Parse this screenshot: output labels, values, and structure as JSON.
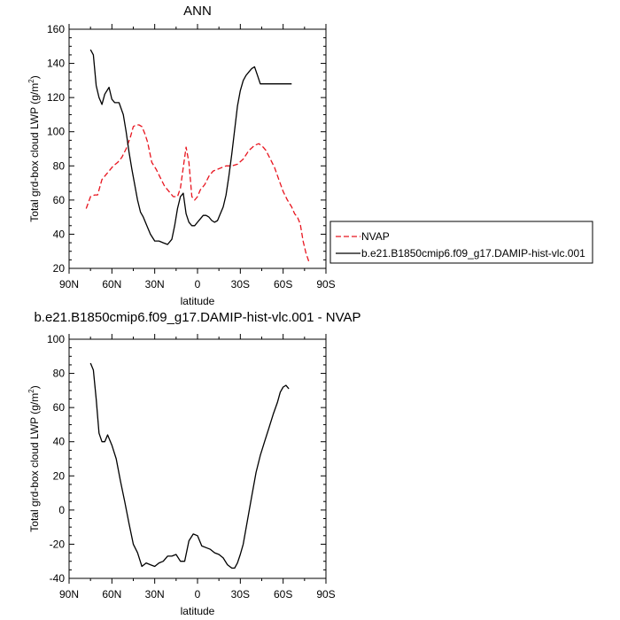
{
  "chart_data": [
    {
      "type": "line",
      "title": "ANN",
      "xlabel": "latitude",
      "ylabel_main": "Total grd-box cloud LWP (g/m",
      "ylabel_sup": "2",
      "ylabel_close": ")",
      "xlim": [
        90,
        -90
      ],
      "ylim": [
        20,
        160
      ],
      "xticks": [
        90,
        60,
        30,
        0,
        -30,
        -60,
        -90
      ],
      "xtick_labels": [
        "90N",
        "60N",
        "30N",
        "0",
        "30S",
        "60S",
        "90S"
      ],
      "yticks": [
        20,
        40,
        60,
        80,
        100,
        120,
        140,
        160
      ],
      "ytick_labels": [
        "20",
        "40",
        "60",
        "80",
        "100",
        "120",
        "140",
        "160"
      ],
      "legend_position": "right",
      "series": [
        {
          "name": "NVAP",
          "color": "#e8141e",
          "dash": true,
          "x": [
            78,
            75,
            72,
            70,
            67,
            64,
            62,
            59,
            56,
            53,
            50,
            47,
            45,
            43,
            41,
            39,
            37,
            35,
            32,
            29,
            26,
            23,
            20,
            17,
            14,
            12,
            10,
            8,
            6,
            4,
            2,
            0,
            -2,
            -5,
            -8,
            -11,
            -14,
            -17,
            -20,
            -24,
            -28,
            -32,
            -36,
            -40,
            -43,
            -46,
            -48,
            -51,
            -54,
            -57,
            -60,
            -63,
            -66,
            -68,
            -70,
            -72,
            -74,
            -76,
            -78
          ],
          "y": [
            55,
            62,
            63,
            63,
            72,
            75,
            77,
            80,
            82,
            85,
            90,
            97,
            103,
            104,
            104,
            103,
            99,
            94,
            82,
            78,
            73,
            68,
            65,
            62,
            62,
            67,
            79,
            91,
            82,
            62,
            60,
            62,
            66,
            69,
            74,
            77,
            78,
            79,
            80,
            80,
            81,
            84,
            89,
            92,
            93,
            91,
            89,
            84,
            79,
            72,
            65,
            60,
            56,
            52,
            50,
            46,
            36,
            29,
            24
          ]
        },
        {
          "name": "b.e21.B1850cmip6.f09_g17.DAMIP-hist-vlc.001",
          "color": "#000000",
          "dash": false,
          "x": [
            75,
            73,
            71,
            69,
            67,
            65,
            62,
            60,
            58,
            55,
            52,
            50,
            48,
            46,
            44,
            42,
            40,
            38,
            36,
            33,
            30,
            27,
            24,
            21,
            18,
            16,
            14,
            12,
            10,
            8,
            6,
            4,
            2,
            0,
            -2,
            -4,
            -6,
            -8,
            -10,
            -12,
            -14,
            -16,
            -18,
            -20,
            -22,
            -24,
            -26,
            -28,
            -30,
            -32,
            -34,
            -36,
            -38,
            -40,
            -42,
            -44,
            -46,
            -48,
            -50,
            -52,
            -54,
            -56,
            -58,
            -60,
            -62,
            -64,
            -66
          ],
          "y": [
            148,
            145,
            127,
            120,
            116,
            122,
            126,
            119,
            117,
            117,
            110,
            100,
            88,
            78,
            69,
            60,
            53,
            50,
            46,
            40,
            36,
            36,
            35,
            34,
            37,
            45,
            55,
            62,
            64,
            52,
            47,
            45,
            45,
            47,
            49,
            51,
            51,
            50,
            48,
            47,
            48,
            52,
            56,
            63,
            74,
            87,
            101,
            115,
            124,
            130,
            133,
            135,
            137,
            138,
            133,
            128,
            128,
            128,
            128,
            128,
            128,
            128,
            128,
            128,
            128,
            128,
            128
          ]
        }
      ]
    },
    {
      "type": "line",
      "title": "b.e21.B1850cmip6.f09_g17.DAMIP-hist-vlc.001 - NVAP",
      "xlabel": "latitude",
      "ylabel_main": "Total grd-box cloud LWP (g/m",
      "ylabel_sup": "2",
      "ylabel_close": ")",
      "xlim": [
        90,
        -90
      ],
      "ylim": [
        -40,
        100
      ],
      "xticks": [
        90,
        60,
        30,
        0,
        -30,
        -60,
        -90
      ],
      "xtick_labels": [
        "90N",
        "60N",
        "30N",
        "0",
        "30S",
        "60S",
        "90S"
      ],
      "yticks": [
        -40,
        -20,
        0,
        20,
        40,
        60,
        80,
        100
      ],
      "ytick_labels": [
        "-40",
        "-20",
        "0",
        "20",
        "40",
        "60",
        "80",
        "100"
      ],
      "series": [
        {
          "color": "#000000",
          "dash": false,
          "x": [
            75,
            73,
            71,
            69,
            67,
            65,
            63,
            60,
            57,
            54,
            51,
            48,
            45,
            42,
            39,
            36,
            33,
            30,
            27,
            24,
            21,
            18,
            15,
            12,
            9,
            6,
            3,
            0,
            -3,
            -6,
            -9,
            -12,
            -15,
            -18,
            -21,
            -24,
            -26,
            -28,
            -30,
            -32,
            -35,
            -38,
            -41,
            -44,
            -47,
            -50,
            -53,
            -56,
            -58,
            -60,
            -62,
            -64
          ],
          "y": [
            86,
            82,
            65,
            45,
            40,
            40,
            44,
            38,
            30,
            17,
            5,
            -8,
            -20,
            -25,
            -33,
            -31,
            -32,
            -33,
            -31,
            -30,
            -27,
            -27,
            -26,
            -30,
            -30,
            -18,
            -14,
            -15,
            -21,
            -22,
            -23,
            -25,
            -26,
            -28,
            -32,
            -34,
            -34,
            -31,
            -26,
            -20,
            -6,
            8,
            22,
            32,
            40,
            48,
            56,
            63,
            69,
            72,
            73,
            71
          ]
        }
      ]
    }
  ]
}
